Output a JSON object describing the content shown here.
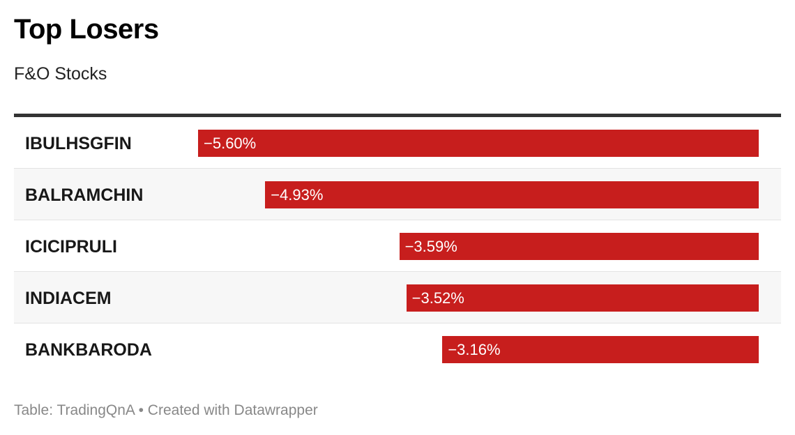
{
  "header": {
    "title": "Top Losers",
    "subtitle": "F&O Stocks"
  },
  "footer": {
    "source": "Table: TradingQnA • Created with Datawrapper"
  },
  "colors": {
    "bar": "#c71e1d",
    "title": "#000000",
    "footer": "#888888"
  },
  "chart_data": {
    "type": "bar",
    "orientation": "horizontal",
    "title": "Top Losers",
    "subtitle": "F&O Stocks",
    "categories": [
      "IBULHSGFIN",
      "BALRAMCHIN",
      "ICICIPRULI",
      "INDIACEM",
      "BANKBARODA"
    ],
    "values": [
      -5.6,
      -4.93,
      -3.59,
      -3.52,
      -3.16
    ],
    "labels": [
      "−5.60%",
      "−4.93%",
      "−3.59%",
      "−3.52%",
      "−3.16%"
    ],
    "unit": "%",
    "range": [
      -5.6,
      0
    ],
    "grid": false
  }
}
